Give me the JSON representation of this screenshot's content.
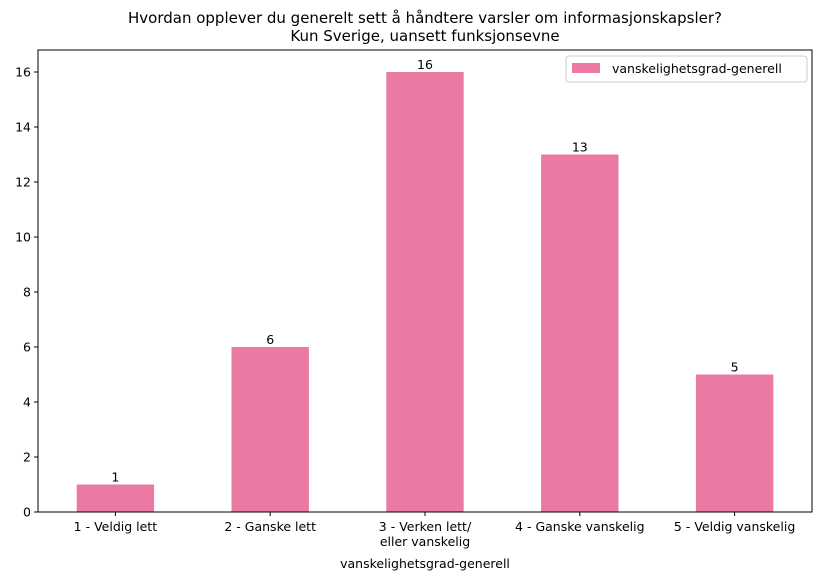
{
  "chart_data": {
    "type": "bar",
    "title": "Hvordan opplever du generelt sett å håndtere varsler om informasjonskapsler?",
    "subtitle": "Kun Sverige, uansett funksjonsevne",
    "xlabel": "vanskelighetsgrad-generell",
    "ylabel": "",
    "categories": [
      [
        "1 - Veldig lett"
      ],
      [
        "2 - Ganske lett"
      ],
      [
        "3 - Verken lett/",
        "eller vanskelig"
      ],
      [
        "4 - Ganske vanskelig"
      ],
      [
        "5 - Veldig vanskelig"
      ]
    ],
    "series": [
      {
        "name": "vanskelighetsgrad-generell",
        "values": [
          1,
          6,
          16,
          13,
          5
        ],
        "color": "#ea7aa3"
      }
    ],
    "yticks": [
      0,
      2,
      4,
      6,
      8,
      10,
      12,
      14,
      16
    ],
    "ylim": [
      0,
      16.8
    ],
    "grid": false,
    "legend": "top-right"
  }
}
